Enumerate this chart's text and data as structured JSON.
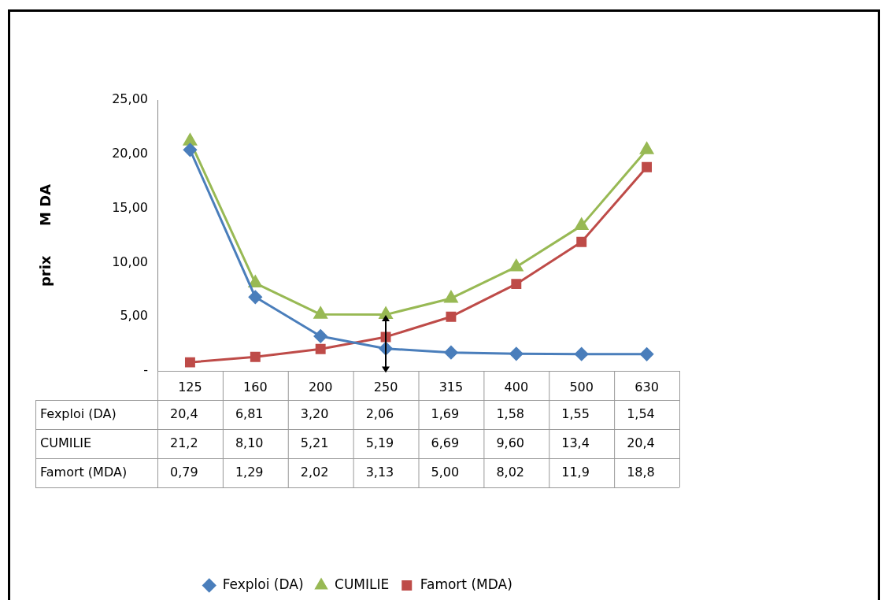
{
  "chart_data": {
    "type": "line",
    "ylabel": "prix      M DA",
    "categories": [
      "125",
      "160",
      "200",
      "250",
      "315",
      "400",
      "500",
      "630"
    ],
    "ylim": [
      0,
      25
    ],
    "yticks": [
      {
        "value": 0,
        "label": "-"
      },
      {
        "value": 5,
        "label": "5,00"
      },
      {
        "value": 10,
        "label": "10,00"
      },
      {
        "value": 15,
        "label": "15,00"
      },
      {
        "value": 20,
        "label": "20,00"
      },
      {
        "value": 25,
        "label": "25,00"
      }
    ],
    "grid": false,
    "legend": "bottom",
    "series": [
      {
        "name": "Fexploi (DA)",
        "color": "#4a7ebb",
        "marker": "diamond",
        "values": [
          20.4,
          6.81,
          3.2,
          2.06,
          1.69,
          1.58,
          1.55,
          1.54
        ],
        "value_labels": [
          "20,4",
          "6,81",
          "3,20",
          "2,06",
          "1,69",
          "1,58",
          "1,55",
          "1,54"
        ]
      },
      {
        "name": "CUMILIE",
        "color": "#98b954",
        "marker": "triangle",
        "values": [
          21.2,
          8.1,
          5.21,
          5.19,
          6.69,
          9.6,
          13.4,
          20.4
        ],
        "value_labels": [
          "21,2",
          "8,10",
          "5,21",
          "5,19",
          "6,69",
          "9,60",
          "13,4",
          "20,4"
        ]
      },
      {
        "name": "Famort (MDA)",
        "color": "#be4b48",
        "marker": "square",
        "values": [
          0.79,
          1.29,
          2.02,
          3.13,
          5.0,
          8.02,
          11.9,
          18.8
        ],
        "value_labels": [
          "0,79",
          "1,29",
          "2,02",
          "3,13",
          "5,00",
          "8,02",
          "11,9",
          "18,8"
        ]
      }
    ]
  }
}
